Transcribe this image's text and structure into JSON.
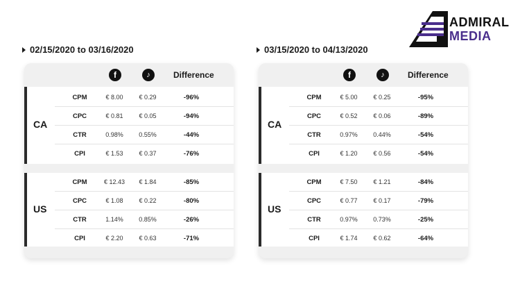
{
  "logo": {
    "line1": "ADMIRAL",
    "line2": "MEDIA"
  },
  "header_icons": {
    "facebook": "f",
    "tiktok": "♪"
  },
  "tables": [
    {
      "date_range": "02/15/2020 to 03/16/2020",
      "difference_label": "Difference",
      "countries": [
        {
          "name": "CA",
          "rows": [
            {
              "metric": "CPM",
              "facebook": "€ 8.00",
              "tiktok": "€ 0.29",
              "difference": "-96%"
            },
            {
              "metric": "CPC",
              "facebook": "€ 0.81",
              "tiktok": "€ 0.05",
              "difference": "-94%"
            },
            {
              "metric": "CTR",
              "facebook": "0.98%",
              "tiktok": "0.55%",
              "difference": "-44%"
            },
            {
              "metric": "CPI",
              "facebook": "€ 1.53",
              "tiktok": "€ 0.37",
              "difference": "-76%"
            }
          ]
        },
        {
          "name": "US",
          "rows": [
            {
              "metric": "CPM",
              "facebook": "€ 12.43",
              "tiktok": "€ 1.84",
              "difference": "-85%"
            },
            {
              "metric": "CPC",
              "facebook": "€ 1.08",
              "tiktok": "€ 0.22",
              "difference": "-80%"
            },
            {
              "metric": "CTR",
              "facebook": "1.14%",
              "tiktok": "0.85%",
              "difference": "-26%"
            },
            {
              "metric": "CPI",
              "facebook": "€ 2.20",
              "tiktok": "€ 0.63",
              "difference": "-71%"
            }
          ]
        }
      ]
    },
    {
      "date_range": "03/15/2020 to 04/13/2020",
      "difference_label": "Difference",
      "countries": [
        {
          "name": "CA",
          "rows": [
            {
              "metric": "CPM",
              "facebook": "€ 5.00",
              "tiktok": "€ 0.25",
              "difference": "-95%"
            },
            {
              "metric": "CPC",
              "facebook": "€ 0.52",
              "tiktok": "€ 0.06",
              "difference": "-89%"
            },
            {
              "metric": "CTR",
              "facebook": "0.97%",
              "tiktok": "0.44%",
              "difference": "-54%"
            },
            {
              "metric": "CPI",
              "facebook": "€ 1.20",
              "tiktok": "€ 0.56",
              "difference": "-54%"
            }
          ]
        },
        {
          "name": "US",
          "rows": [
            {
              "metric": "CPM",
              "facebook": "€ 7.50",
              "tiktok": "€ 1.21",
              "difference": "-84%"
            },
            {
              "metric": "CPC",
              "facebook": "€ 0.77",
              "tiktok": "€ 0.17",
              "difference": "-79%"
            },
            {
              "metric": "CTR",
              "facebook": "0.97%",
              "tiktok": "0.73%",
              "difference": "-25%"
            },
            {
              "metric": "CPI",
              "facebook": "€ 1.74",
              "tiktok": "€ 0.62",
              "difference": "-64%"
            }
          ]
        }
      ]
    }
  ]
}
